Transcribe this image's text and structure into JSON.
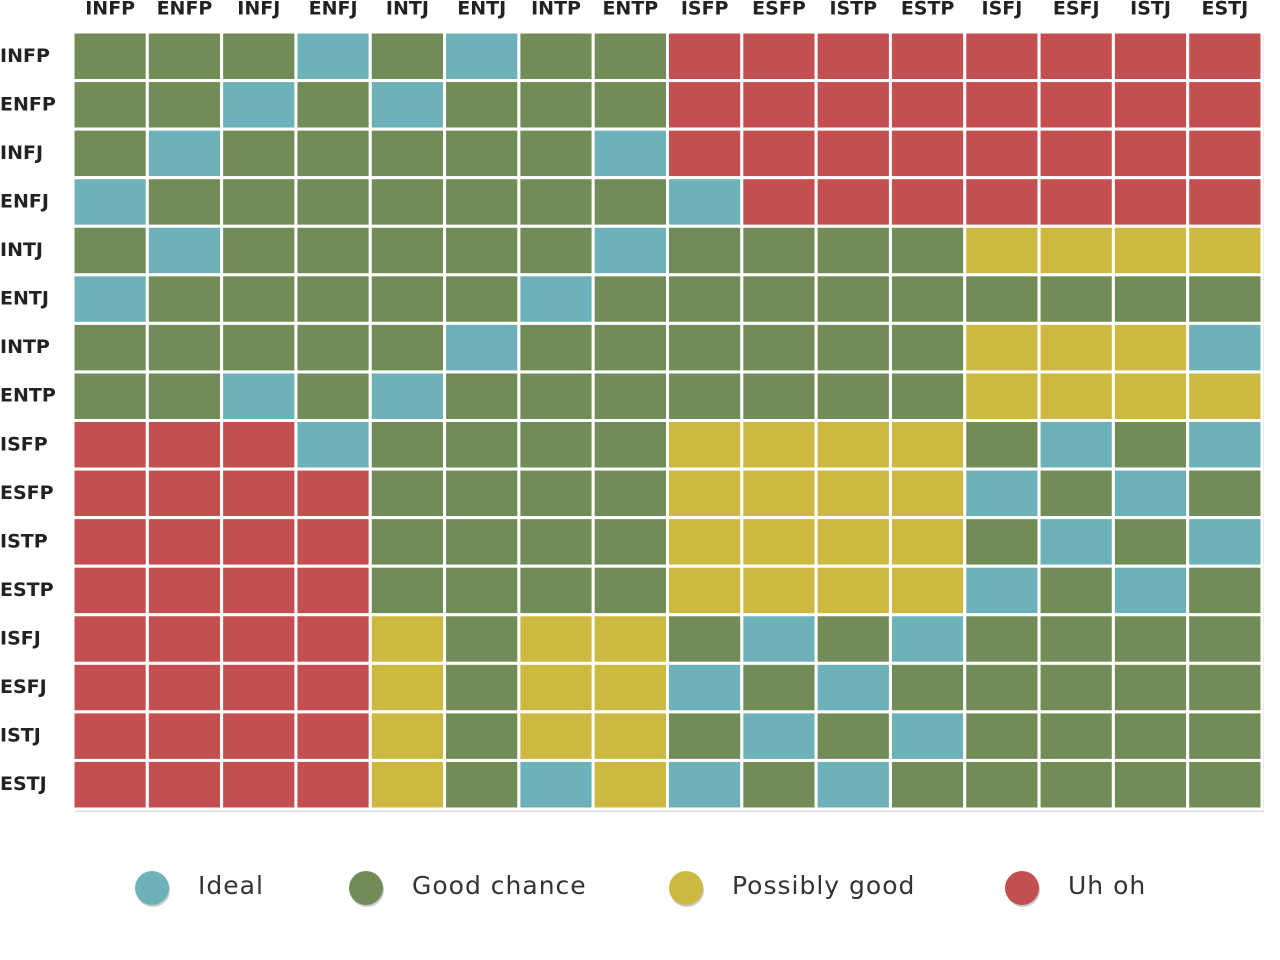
{
  "chart_data": {
    "type": "heatmap",
    "x_categories": [
      "INFP",
      "ENFP",
      "INFJ",
      "ENFJ",
      "INTJ",
      "ENTJ",
      "INTP",
      "ENTP",
      "ISFP",
      "ESFP",
      "ISTP",
      "ESTP",
      "ISFJ",
      "ESFJ",
      "ISTJ",
      "ESTJ"
    ],
    "y_categories": [
      "INFP",
      "ENFP",
      "INFJ",
      "ENFJ",
      "INTJ",
      "ENTJ",
      "INTP",
      "ENTP",
      "ISFP",
      "ESFP",
      "ISTP",
      "ESTP",
      "ISFJ",
      "ESFJ",
      "ISTJ",
      "ESTJ"
    ],
    "legend": [
      {
        "name": "Ideal",
        "color": "#6cb2b8"
      },
      {
        "name": "Good chance",
        "color": "#728c58"
      },
      {
        "name": "Possibly good",
        "color": "#cdb841"
      },
      {
        "name": "Uh oh",
        "color": "#c44f50"
      }
    ],
    "values": [
      [
        1,
        1,
        1,
        0,
        1,
        0,
        1,
        1,
        3,
        3,
        3,
        3,
        3,
        3,
        3,
        3
      ],
      [
        1,
        1,
        0,
        1,
        0,
        1,
        1,
        1,
        3,
        3,
        3,
        3,
        3,
        3,
        3,
        3
      ],
      [
        1,
        0,
        1,
        1,
        1,
        1,
        1,
        0,
        3,
        3,
        3,
        3,
        3,
        3,
        3,
        3
      ],
      [
        0,
        1,
        1,
        1,
        1,
        1,
        1,
        1,
        0,
        3,
        3,
        3,
        3,
        3,
        3,
        3
      ],
      [
        1,
        0,
        1,
        1,
        1,
        1,
        1,
        0,
        1,
        1,
        1,
        1,
        2,
        2,
        2,
        2
      ],
      [
        0,
        1,
        1,
        1,
        1,
        1,
        0,
        1,
        1,
        1,
        1,
        1,
        1,
        1,
        1,
        1
      ],
      [
        1,
        1,
        1,
        1,
        1,
        0,
        1,
        1,
        1,
        1,
        1,
        1,
        2,
        2,
        2,
        0
      ],
      [
        1,
        1,
        0,
        1,
        0,
        1,
        1,
        1,
        1,
        1,
        1,
        1,
        2,
        2,
        2,
        2
      ],
      [
        3,
        3,
        3,
        0,
        1,
        1,
        1,
        1,
        2,
        2,
        2,
        2,
        1,
        0,
        1,
        0
      ],
      [
        3,
        3,
        3,
        3,
        1,
        1,
        1,
        1,
        2,
        2,
        2,
        2,
        0,
        1,
        0,
        1
      ],
      [
        3,
        3,
        3,
        3,
        1,
        1,
        1,
        1,
        2,
        2,
        2,
        2,
        1,
        0,
        1,
        0
      ],
      [
        3,
        3,
        3,
        3,
        1,
        1,
        1,
        1,
        2,
        2,
        2,
        2,
        0,
        1,
        0,
        1
      ],
      [
        3,
        3,
        3,
        3,
        2,
        1,
        2,
        2,
        1,
        0,
        1,
        0,
        1,
        1,
        1,
        1
      ],
      [
        3,
        3,
        3,
        3,
        2,
        1,
        2,
        2,
        0,
        1,
        0,
        1,
        1,
        1,
        1,
        1
      ],
      [
        3,
        3,
        3,
        3,
        2,
        1,
        2,
        2,
        1,
        0,
        1,
        0,
        1,
        1,
        1,
        1
      ],
      [
        3,
        3,
        3,
        3,
        2,
        1,
        0,
        2,
        0,
        1,
        0,
        1,
        1,
        1,
        1,
        1
      ]
    ]
  }
}
